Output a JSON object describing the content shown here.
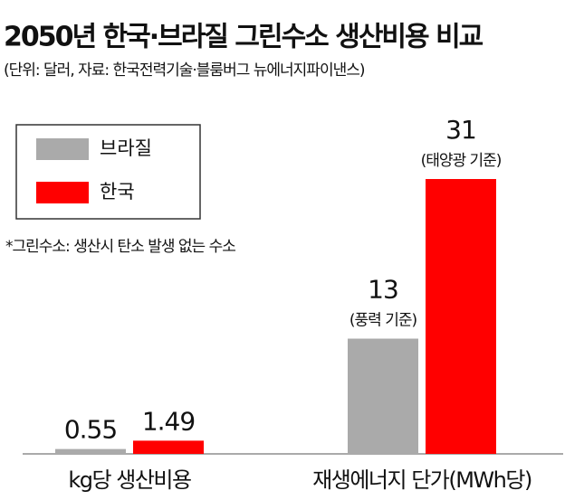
{
  "chart_data": {
    "type": "bar",
    "title": "2050년 한국·브라질 그린수소 생산비용 비교",
    "subtitle": "(단위: 달러, 자료: 한국전력기술·블룸버그 뉴에너지파이낸스)",
    "note": "*그린수소: 생산시 탄소 발생 없는 수소",
    "categories": [
      "kg당 생산비용",
      "재생에너지 단가(MWh당)"
    ],
    "series": [
      {
        "name": "브라질",
        "color": "#aaaaaa",
        "values": [
          0.55,
          13
        ],
        "notes": [
          null,
          "(풍력 기준)"
        ]
      },
      {
        "name": "한국",
        "color": "#ff0000",
        "values": [
          1.49,
          31
        ],
        "notes": [
          null,
          "(태양광 기준)"
        ]
      }
    ]
  }
}
